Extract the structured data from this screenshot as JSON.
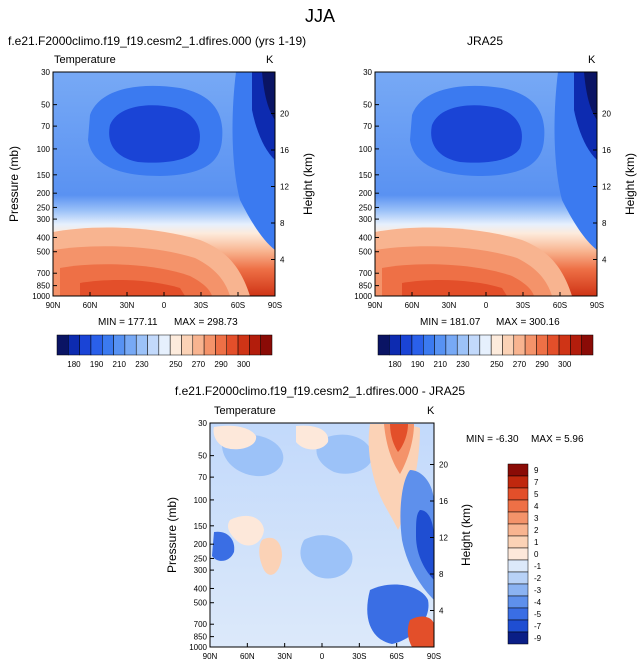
{
  "page_title": "JJA",
  "chart_data": [
    {
      "type": "contour",
      "title": "f.e21.F2000climo.f19_f19.cesm2_1.dfires.000 (yrs 1-19)",
      "subtitle_left": "Temperature",
      "units": "K",
      "xlabel": "",
      "ylabel": "Pressure (mb)",
      "ylabel_right": "Height (km)",
      "x_ticks": [
        "90N",
        "60N",
        "30N",
        "0",
        "30S",
        "60S",
        "90S"
      ],
      "y_ticks": [
        30,
        50,
        70,
        100,
        150,
        200,
        250,
        300,
        400,
        500,
        700,
        850,
        1000
      ],
      "y_ticks_right": [
        20,
        16,
        12,
        8,
        4
      ],
      "min_label": "MIN = 177.11",
      "max_label": "MAX = 298.73",
      "min": 177.11,
      "max": 298.73
    },
    {
      "type": "contour",
      "title": "JRA25",
      "subtitle_left": "",
      "units": "K",
      "xlabel": "",
      "ylabel": "",
      "ylabel_right": "Height (km)",
      "x_ticks": [
        "90N",
        "60N",
        "30N",
        "0",
        "30S",
        "60S",
        "90S"
      ],
      "y_ticks": [
        30,
        50,
        70,
        100,
        150,
        200,
        250,
        300,
        400,
        500,
        700,
        850,
        1000
      ],
      "y_ticks_right": [
        20,
        16,
        12,
        8,
        4
      ],
      "min_label": "MIN = 181.07",
      "max_label": "MAX = 300.16",
      "min": 181.07,
      "max": 300.16
    },
    {
      "type": "contour",
      "title": "f.e21.F2000climo.f19_f19.cesm2_1.dfires.000 - JRA25",
      "subtitle_left": "Temperature",
      "units": "K",
      "xlabel": "",
      "ylabel": "Pressure (mb)",
      "ylabel_right": "Height (km)",
      "x_ticks": [
        "90N",
        "60N",
        "30N",
        "0",
        "30S",
        "60S",
        "90S"
      ],
      "y_ticks": [
        30,
        50,
        70,
        100,
        150,
        200,
        250,
        300,
        400,
        500,
        700,
        850,
        1000
      ],
      "y_ticks_right": [
        20,
        16,
        12,
        8,
        4
      ],
      "min_label": "MIN = -6.30",
      "max_label": "MAX =  5.96",
      "min": -6.3,
      "max": 5.96
    }
  ],
  "colorbar_abs": {
    "colors": [
      "#0a1464",
      "#0d2bb0",
      "#1a44d6",
      "#2a60ea",
      "#3b7af0",
      "#5792f3",
      "#77a9f5",
      "#9cc2f8",
      "#c2d9fb",
      "#e6f0fd",
      "#fdebdc",
      "#fbd2b6",
      "#f8b490",
      "#f4936a",
      "#ee7046",
      "#e34f2a",
      "#cf3416",
      "#b31d0c",
      "#8a0b06"
    ],
    "labels": [
      "180",
      "190",
      "210",
      "230",
      "250",
      "270",
      "290",
      "300"
    ]
  },
  "colorbar_diff": {
    "colors": [
      "#8a0b06",
      "#c0280e",
      "#e34f2a",
      "#ee7046",
      "#f4936a",
      "#f8b490",
      "#fbd2b6",
      "#fde8da",
      "#dce9fa",
      "#b8d2f7",
      "#8bb3f2",
      "#5e90ec",
      "#3a6ee4",
      "#1f4ed2",
      "#0a1e86"
    ],
    "labels": [
      "9",
      "7",
      "5",
      "4",
      "3",
      "2",
      "1",
      "0",
      "-1",
      "-2",
      "-3",
      "-4",
      "-5",
      "-7",
      "-9"
    ]
  }
}
